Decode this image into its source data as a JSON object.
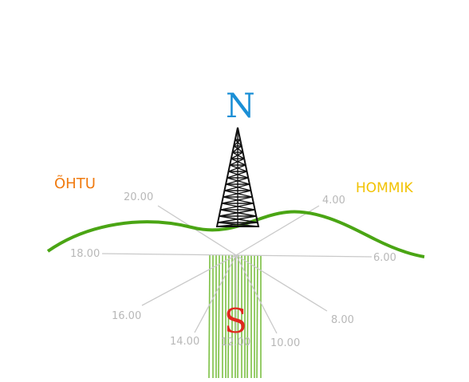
{
  "north_letter": "N",
  "south_letter": "S",
  "evening_label": "ÕHTU",
  "morning_label": "HOMMIK",
  "hour_labels": [
    "20.00",
    "4.00",
    "18.00",
    "6.00",
    "16.00",
    "8.00",
    "14.00",
    "12.00",
    "10.00"
  ],
  "colors": {
    "north": "#1a8fd6",
    "south": "#e0281e",
    "evening": "#f07b10",
    "morning": "#f2c200",
    "horizon": "#4aa514",
    "south_bars": "#7cc043",
    "hour_lines": "#c9c9c9",
    "tower": "#111111"
  }
}
